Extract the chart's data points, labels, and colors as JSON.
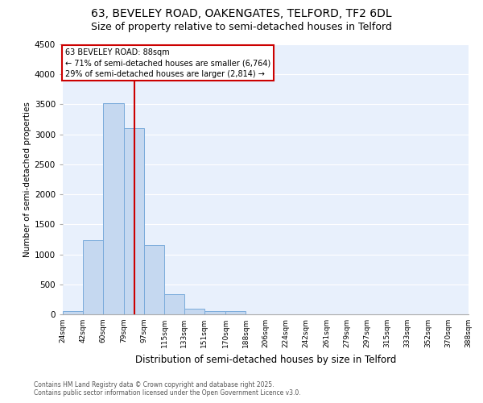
{
  "title1": "63, BEVELEY ROAD, OAKENGATES, TELFORD, TF2 6DL",
  "title2": "Size of property relative to semi-detached houses in Telford",
  "xlabel": "Distribution of semi-detached houses by size in Telford",
  "ylabel": "Number of semi-detached properties",
  "bar_color": "#c5d8f0",
  "bar_edge_color": "#7aabdb",
  "property_line_x": 88,
  "property_label": "63 BEVELEY ROAD: 88sqm",
  "annotation_line1": "← 71% of semi-detached houses are smaller (6,764)",
  "annotation_line2": "29% of semi-detached houses are larger (2,814) →",
  "annotation_box_color": "#ffffff",
  "annotation_box_edge": "#cc0000",
  "line_color": "#cc0000",
  "bins": [
    24,
    42,
    60,
    79,
    97,
    115,
    133,
    151,
    170,
    188,
    206,
    224,
    242,
    261,
    279,
    297,
    315,
    333,
    352,
    370,
    388
  ],
  "bin_labels": [
    "24sqm",
    "42sqm",
    "60sqm",
    "79sqm",
    "97sqm",
    "115sqm",
    "133sqm",
    "151sqm",
    "170sqm",
    "188sqm",
    "206sqm",
    "224sqm",
    "242sqm",
    "261sqm",
    "279sqm",
    "297sqm",
    "315sqm",
    "333sqm",
    "352sqm",
    "370sqm",
    "388sqm"
  ],
  "values": [
    60,
    1230,
    3520,
    3100,
    1160,
    330,
    95,
    55,
    55,
    0,
    0,
    0,
    0,
    0,
    0,
    0,
    0,
    0,
    0,
    0
  ],
  "ylim": [
    0,
    4500
  ],
  "yticks": [
    0,
    500,
    1000,
    1500,
    2000,
    2500,
    3000,
    3500,
    4000,
    4500
  ],
  "footnote1": "Contains HM Land Registry data © Crown copyright and database right 2025.",
  "footnote2": "Contains public sector information licensed under the Open Government Licence v3.0.",
  "background_color": "#e8f0fc",
  "title1_fontsize": 10,
  "title2_fontsize": 9
}
